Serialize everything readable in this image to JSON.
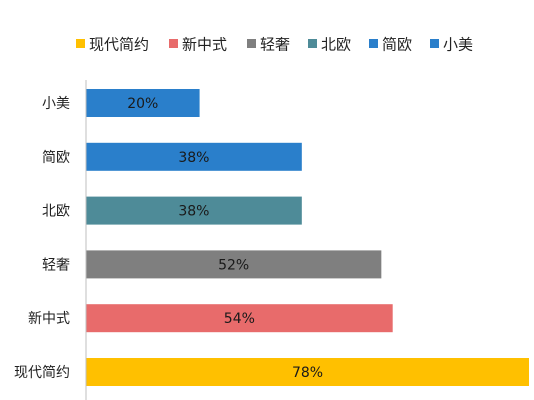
{
  "chart_data": {
    "type": "bar",
    "orientation": "horizontal",
    "categories": [
      "小美",
      "简欧",
      "北欧",
      "轻奢",
      "新中式",
      "现代简约"
    ],
    "values": [
      20,
      38,
      38,
      52,
      54,
      78
    ],
    "value_labels": [
      "20%",
      "38%",
      "38%",
      "52%",
      "54%",
      "78%"
    ],
    "unit": "%",
    "xlim": [
      0,
      78
    ],
    "grid": false,
    "legend_position": "top",
    "legend": [
      {
        "name": "现代简约",
        "color": "#FFC000"
      },
      {
        "name": "新中式",
        "color": "#E86B6B"
      },
      {
        "name": "轻奢",
        "color": "#7F7F7F"
      },
      {
        "name": "北欧",
        "color": "#4E8B98"
      },
      {
        "name": "简欧",
        "color": "#2A7FCB"
      },
      {
        "name": "小美",
        "color": "#2A7FCB"
      }
    ],
    "bar_colors": [
      "#2A7FCB",
      "#2A7FCB",
      "#4E8B98",
      "#7F7F7F",
      "#E86B6B",
      "#FFC000"
    ],
    "title": "",
    "xlabel": "",
    "ylabel": ""
  }
}
